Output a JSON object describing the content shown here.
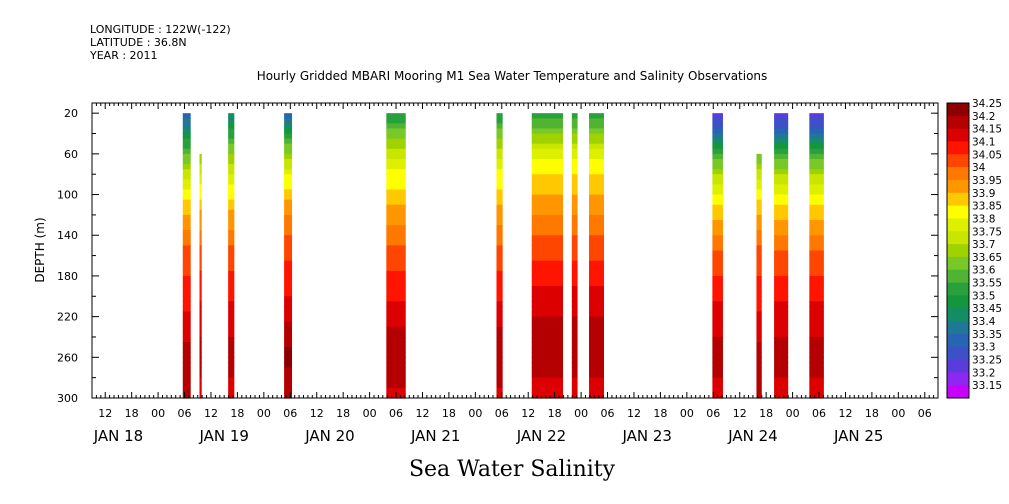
{
  "meta": {
    "longitude": "LONGITUDE : 122W(-122)",
    "latitude": "LATITUDE : 36.8N",
    "year": "YEAR : 2011"
  },
  "chart_data": {
    "type": "heatmap",
    "title": "Hourly Gridded MBARI Mooring M1 Sea Water Temperature and Salinity Observations",
    "xlabel": "Sea Water Salinity",
    "ylabel": "DEPTH (m)",
    "x_unit": "hours since 2011-01-17 09:00",
    "xlim": [
      0,
      192
    ],
    "ylim": [
      300,
      10
    ],
    "y_ticks": [
      20,
      60,
      100,
      140,
      180,
      220,
      260,
      300
    ],
    "x_hour_ticks": [
      {
        "h": 3,
        "label": "12"
      },
      {
        "h": 9,
        "label": "18"
      },
      {
        "h": 15,
        "label": "00"
      },
      {
        "h": 21,
        "label": "06"
      },
      {
        "h": 27,
        "label": "12"
      },
      {
        "h": 33,
        "label": "18"
      },
      {
        "h": 39,
        "label": "00"
      },
      {
        "h": 45,
        "label": "06"
      },
      {
        "h": 51,
        "label": "12"
      },
      {
        "h": 57,
        "label": "18"
      },
      {
        "h": 63,
        "label": "00"
      },
      {
        "h": 69,
        "label": "06"
      },
      {
        "h": 75,
        "label": "12"
      },
      {
        "h": 81,
        "label": "18"
      },
      {
        "h": 87,
        "label": "00"
      },
      {
        "h": 93,
        "label": "06"
      },
      {
        "h": 99,
        "label": "12"
      },
      {
        "h": 105,
        "label": "18"
      },
      {
        "h": 111,
        "label": "00"
      },
      {
        "h": 117,
        "label": "06"
      },
      {
        "h": 123,
        "label": "12"
      },
      {
        "h": 129,
        "label": "18"
      },
      {
        "h": 135,
        "label": "00"
      },
      {
        "h": 141,
        "label": "06"
      },
      {
        "h": 147,
        "label": "12"
      },
      {
        "h": 153,
        "label": "18"
      },
      {
        "h": 159,
        "label": "00"
      },
      {
        "h": 165,
        "label": "06"
      },
      {
        "h": 171,
        "label": "12"
      },
      {
        "h": 177,
        "label": "18"
      },
      {
        "h": 183,
        "label": "00"
      },
      {
        "h": 189,
        "label": "06"
      }
    ],
    "x_day_labels": [
      {
        "h": 6,
        "label": "JAN 18"
      },
      {
        "h": 30,
        "label": "JAN 19"
      },
      {
        "h": 54,
        "label": "JAN 20"
      },
      {
        "h": 78,
        "label": "JAN 21"
      },
      {
        "h": 102,
        "label": "JAN 22"
      },
      {
        "h": 126,
        "label": "JAN 23"
      },
      {
        "h": 150,
        "label": "JAN 24"
      },
      {
        "h": 174,
        "label": "JAN 25"
      }
    ],
    "colorbar": {
      "levels": [
        "34.25",
        "34.2",
        "34.15",
        "34.1",
        "34.05",
        "34",
        "33.95",
        "33.9",
        "33.85",
        "33.8",
        "33.75",
        "33.7",
        "33.65",
        "33.6",
        "33.55",
        "33.5",
        "33.45",
        "33.4",
        "33.35",
        "33.3",
        "33.25",
        "33.2",
        "33.15"
      ],
      "colors": [
        "#8c0000",
        "#b40000",
        "#dc0000",
        "#ff1400",
        "#ff4600",
        "#ff7800",
        "#ff9600",
        "#ffc800",
        "#ffff00",
        "#dcf000",
        "#c8e600",
        "#a0d200",
        "#78c828",
        "#50b432",
        "#28a03c",
        "#14963c",
        "#148c64",
        "#1e7896",
        "#2864b4",
        "#3c50c8",
        "#5a3cdc",
        "#8c28f0",
        "#c800ff"
      ]
    },
    "profile_depths": [
      20,
      40,
      60,
      80,
      100,
      120,
      140,
      160,
      180,
      200,
      220,
      240,
      260,
      280,
      300
    ],
    "profiles": [
      {
        "name": "A",
        "values": [
          33.35,
          33.5,
          33.65,
          33.78,
          33.87,
          33.95,
          34.02,
          34.07,
          34.1,
          34.13,
          34.16,
          34.19,
          34.23,
          34.24,
          34.2
        ]
      },
      {
        "name": "B",
        "values": [
          33.45,
          33.58,
          33.7,
          33.8,
          33.88,
          33.96,
          34.02,
          34.07,
          34.11,
          34.14,
          34.17,
          34.2,
          34.22,
          34.2,
          34.16
        ]
      },
      {
        "name": "C",
        "values": [
          33.35,
          33.55,
          33.72,
          33.84,
          33.93,
          34.0,
          34.05,
          34.09,
          34.12,
          34.15,
          34.19,
          34.24,
          34.26,
          34.24,
          34.2
        ]
      },
      {
        "name": "D",
        "values": [
          33.55,
          33.68,
          33.78,
          33.86,
          33.92,
          33.98,
          34.03,
          34.07,
          34.11,
          34.14,
          34.18,
          34.22,
          34.25,
          34.22,
          34.18
        ]
      },
      {
        "name": "E",
        "values": [
          33.55,
          33.7,
          33.82,
          33.9,
          33.95,
          34.0,
          34.05,
          34.09,
          34.13,
          34.17,
          34.2,
          34.23,
          34.22,
          34.2,
          34.16
        ]
      },
      {
        "name": "F",
        "values": [
          33.25,
          33.4,
          33.6,
          33.75,
          33.85,
          33.93,
          34.0,
          34.06,
          34.1,
          34.14,
          34.17,
          34.2,
          34.21,
          34.2,
          34.16
        ]
      }
    ],
    "blocks": [
      {
        "start": 20.6,
        "end": 22.4,
        "profile": "A"
      },
      {
        "start": 24.4,
        "end": 24.9,
        "profile": "B",
        "top": 60
      },
      {
        "start": 30.9,
        "end": 32.3,
        "profile": "B"
      },
      {
        "start": 43.6,
        "end": 45.4,
        "profile": "C"
      },
      {
        "start": 66.8,
        "end": 71.2,
        "profile": "D"
      },
      {
        "start": 91.8,
        "end": 93.2,
        "profile": "D"
      },
      {
        "start": 99.8,
        "end": 106.9,
        "profile": "E"
      },
      {
        "start": 108.9,
        "end": 110.2,
        "profile": "E"
      },
      {
        "start": 112.8,
        "end": 116.2,
        "profile": "E"
      },
      {
        "start": 140.8,
        "end": 143.2,
        "profile": "F"
      },
      {
        "start": 150.8,
        "end": 152.0,
        "profile": "A",
        "top": 60
      },
      {
        "start": 154.8,
        "end": 158.0,
        "profile": "F"
      },
      {
        "start": 162.8,
        "end": 166.1,
        "profile": "F"
      }
    ]
  }
}
